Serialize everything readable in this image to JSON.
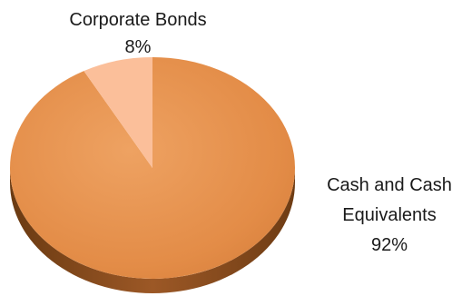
{
  "chart_data": {
    "type": "pie",
    "title": "",
    "style": "3d-pie",
    "legend": "none",
    "slices": [
      {
        "label": "Cash and Cash Equivalents",
        "label_lines": [
          "Cash and Cash",
          "Equivalents"
        ],
        "percent_label": "92%",
        "value": 92,
        "color": "#e38c47"
      },
      {
        "label": "Corporate Bonds",
        "label_lines": [
          "Corporate Bonds"
        ],
        "percent_label": "8%",
        "value": 8,
        "color": "#fbbf9a"
      }
    ]
  }
}
